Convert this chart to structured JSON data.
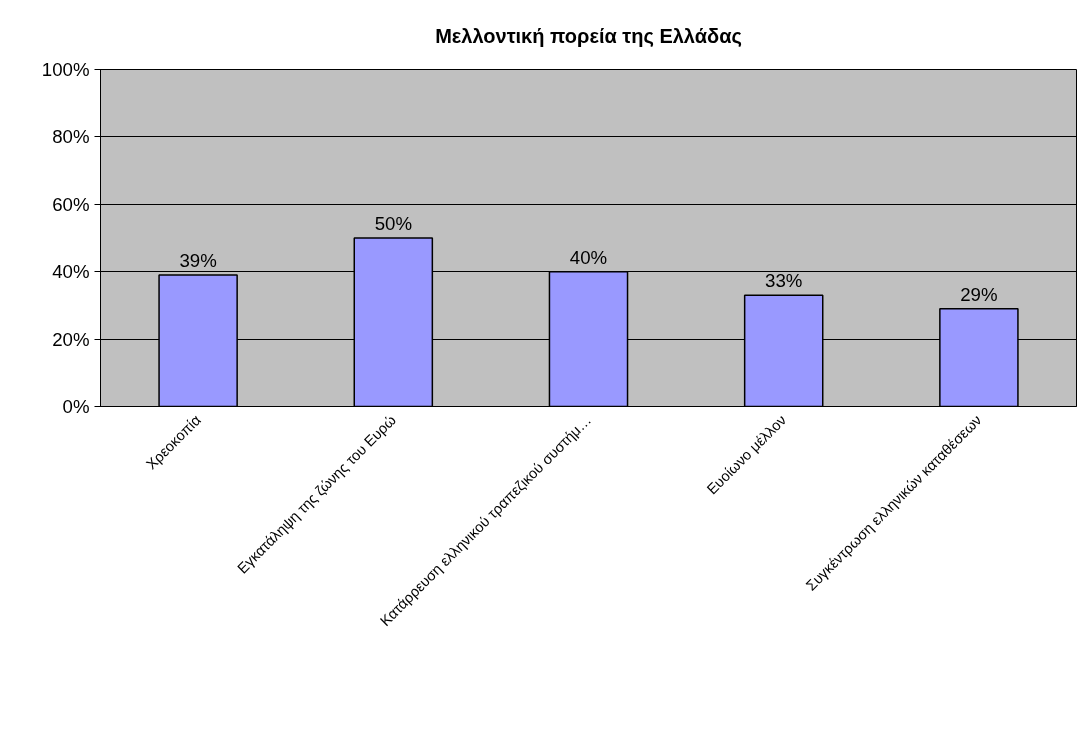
{
  "chart_data": {
    "type": "bar",
    "title": "Μελλοντική πορεία της Ελλάδας",
    "categories": [
      "Χρεοκοπία",
      "Εγκατάληψη της ζώνης του Ευρώ",
      "Κατάρρευση ελληνικού τραπεζικού συστήμ…",
      "Ευοίωνο μέλλον",
      "Συγκέντρωση ελληνικών καταθέσεων"
    ],
    "values": [
      39,
      50,
      40,
      33,
      29
    ],
    "value_labels": [
      "39%",
      "50%",
      "40%",
      "33%",
      "29%"
    ],
    "color": "#9999ff",
    "ylim": [
      0,
      100
    ],
    "yticks": [
      {
        "value": 0,
        "label": "0%"
      },
      {
        "value": 20,
        "label": "20%"
      },
      {
        "value": 40,
        "label": "40%"
      },
      {
        "value": 60,
        "label": "60%"
      },
      {
        "value": 80,
        "label": "80%"
      },
      {
        "value": 100,
        "label": "100%"
      }
    ],
    "grid": "y"
  }
}
